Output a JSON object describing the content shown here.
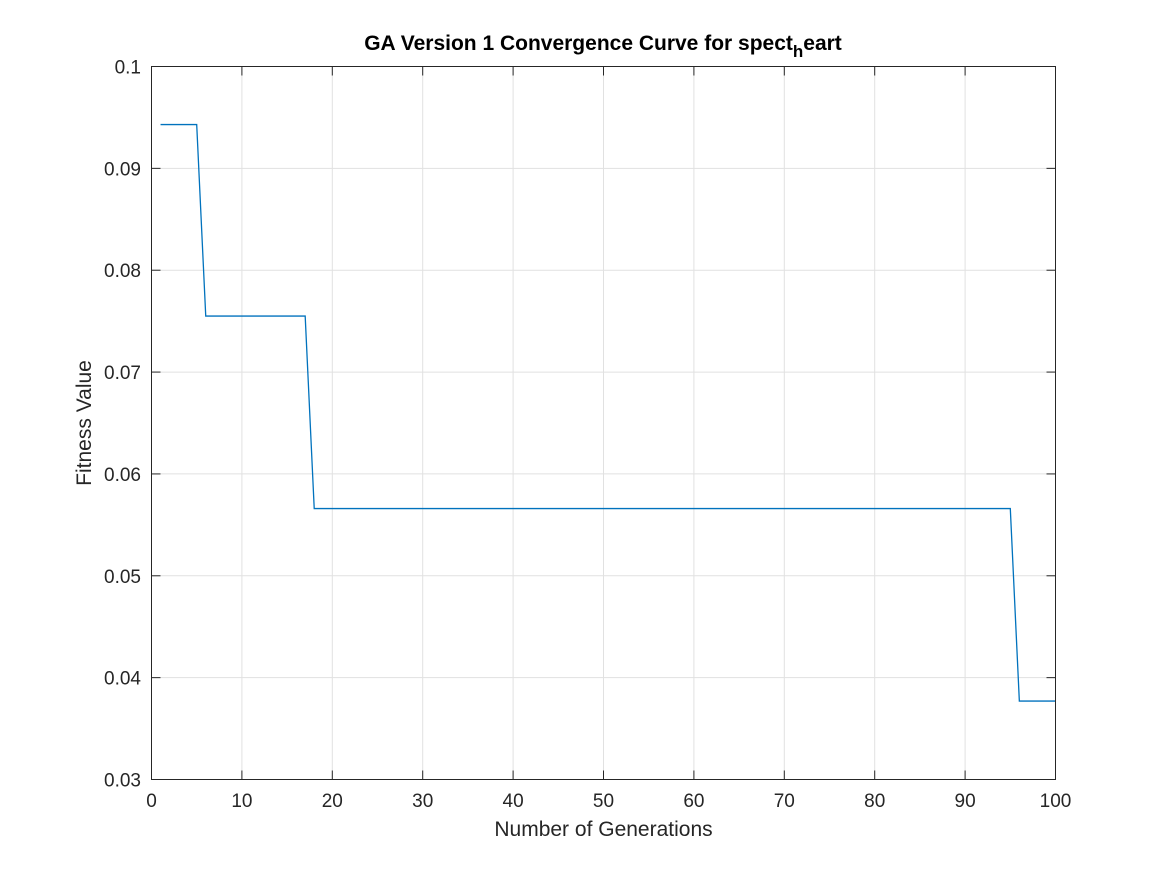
{
  "chart_data": {
    "type": "line",
    "title": "GA Version 1 Convergence Curve for spect",
    "title_subscript": "h",
    "title_suffix": "eart",
    "xlabel": "Number of Generations",
    "ylabel": "Fitness Value",
    "xlim": [
      0,
      100
    ],
    "ylim": [
      0.03,
      0.1
    ],
    "xticks": [
      0,
      10,
      20,
      30,
      40,
      50,
      60,
      70,
      80,
      90,
      100
    ],
    "xtick_labels": [
      "0",
      "10",
      "20",
      "30",
      "40",
      "50",
      "60",
      "70",
      "80",
      "90",
      "100"
    ],
    "yticks": [
      0.03,
      0.04,
      0.05,
      0.06,
      0.07,
      0.08,
      0.09,
      0.1
    ],
    "ytick_labels": [
      "0.03",
      "0.04",
      "0.05",
      "0.06",
      "0.07",
      "0.08",
      "0.09",
      "0.1"
    ],
    "grid": true,
    "series": [
      {
        "color": "#0072bd",
        "x": [
          1,
          5,
          6,
          17,
          18,
          95,
          96,
          100
        ],
        "y": [
          0.0943,
          0.0943,
          0.0755,
          0.0755,
          0.0566,
          0.0566,
          0.0377,
          0.0377
        ]
      }
    ]
  }
}
